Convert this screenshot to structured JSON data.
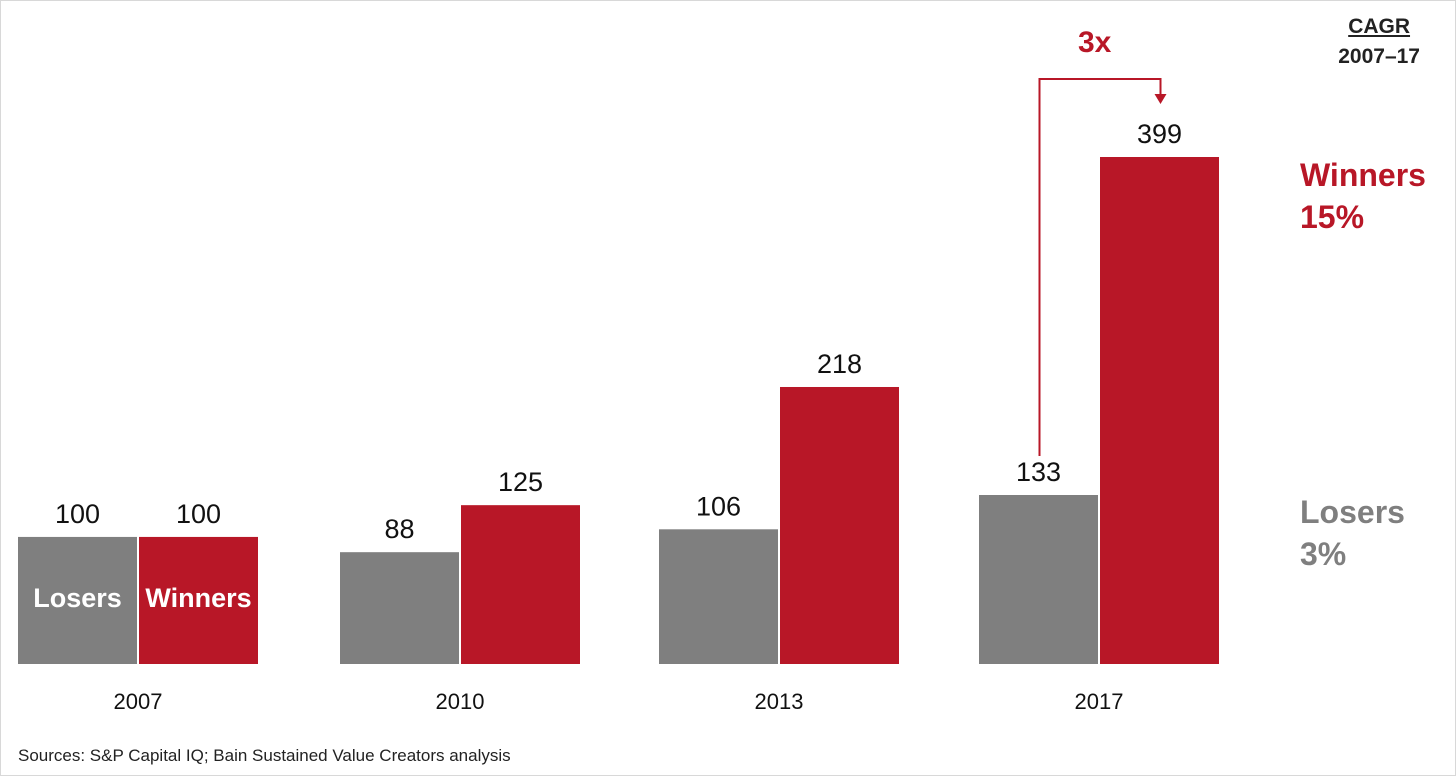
{
  "chart_data": {
    "type": "bar",
    "categories": [
      "2007",
      "2010",
      "2013",
      "2017"
    ],
    "series": [
      {
        "name": "Losers",
        "values": [
          100,
          88,
          106,
          133
        ],
        "color": "#7f7f7f"
      },
      {
        "name": "Winners",
        "values": [
          100,
          125,
          218,
          399
        ],
        "color": "#b81727"
      }
    ],
    "ylim": [
      0,
      399
    ],
    "grid": false,
    "multiplier_annotation": "3x",
    "cagr_header": {
      "title": "CAGR",
      "period": "2007–17"
    },
    "cagr": [
      {
        "series": "Winners",
        "value": "15%",
        "color": "#b81727"
      },
      {
        "series": "Losers",
        "value": "3%",
        "color": "#7f7f7f"
      }
    ]
  },
  "footer": {
    "sources": "Sources: S&P Capital IQ; Bain Sustained Value Creators analysis"
  },
  "colors": {
    "accent": "#b81727",
    "neutral": "#7f7f7f"
  }
}
